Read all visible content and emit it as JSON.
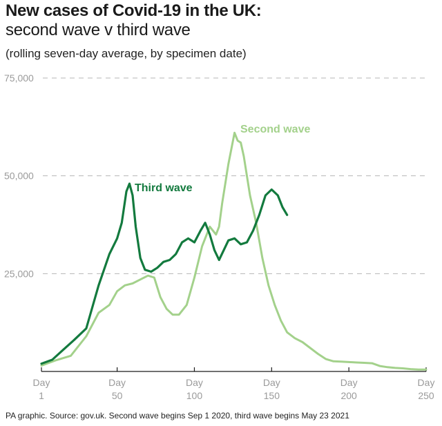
{
  "header": {
    "title": "New cases of Covid-19 in the UK:",
    "subtitle": "second wave v third wave",
    "note": "(rolling seven-day average, by specimen date)"
  },
  "footer": {
    "source": "PA graphic. Source: gov.uk. Second wave begins Sep 1 2020, third wave begins May 23 2021"
  },
  "colors": {
    "second_wave": "#a3d18b",
    "third_wave": "#137a3e",
    "grid": "#b5b5b5",
    "axis": "#1a1a1a"
  },
  "chart_data": {
    "type": "line",
    "title": "New cases of Covid-19 in the UK:",
    "subtitle": "second wave v third wave",
    "xlim": [
      1,
      250
    ],
    "ylim": [
      0,
      75000
    ],
    "grid": true,
    "y_ticks": [
      {
        "value": 25000,
        "label": "25,000"
      },
      {
        "value": 50000,
        "label": "50,000"
      },
      {
        "value": 75000,
        "label": "75,000"
      }
    ],
    "x_ticks": [
      {
        "value": 1,
        "label_top": "Day",
        "label_bottom": "1"
      },
      {
        "value": 50,
        "label_top": "Day",
        "label_bottom": "50"
      },
      {
        "value": 100,
        "label_top": "Day",
        "label_bottom": "100"
      },
      {
        "value": 150,
        "label_top": "Day",
        "label_bottom": "150"
      },
      {
        "value": 200,
        "label_top": "Day",
        "label_bottom": "200"
      },
      {
        "value": 250,
        "label_top": "Day",
        "label_bottom": "250"
      }
    ],
    "series": [
      {
        "name": "Second wave",
        "color_key": "second_wave",
        "x": [
          1,
          10,
          20,
          30,
          38,
          45,
          50,
          55,
          60,
          65,
          70,
          74,
          78,
          82,
          86,
          90,
          95,
          100,
          105,
          110,
          114,
          116,
          118,
          122,
          126,
          128,
          130,
          132,
          134,
          136,
          140,
          144,
          148,
          152,
          156,
          160,
          165,
          170,
          175,
          180,
          185,
          190,
          195,
          200,
          205,
          210,
          215,
          220,
          225,
          230,
          235,
          240,
          245,
          250
        ],
        "y": [
          1500,
          2800,
          4000,
          9000,
          15000,
          17000,
          20500,
          22000,
          22500,
          23500,
          24500,
          24000,
          19000,
          16000,
          14500,
          14500,
          17000,
          24000,
          32000,
          37000,
          35000,
          37000,
          43000,
          53000,
          61000,
          59000,
          58500,
          55000,
          50000,
          45000,
          38000,
          29000,
          22000,
          17000,
          13000,
          10000,
          8500,
          7500,
          6000,
          4500,
          3200,
          2600,
          2500,
          2400,
          2300,
          2200,
          2100,
          1400,
          1100,
          900,
          800,
          600,
          500,
          500
        ]
      },
      {
        "name": "Third wave",
        "color_key": "third_wave",
        "x": [
          1,
          8,
          15,
          22,
          30,
          38,
          45,
          50,
          53,
          56,
          58,
          60,
          62,
          65,
          68,
          72,
          76,
          80,
          84,
          88,
          92,
          96,
          100,
          104,
          107,
          110,
          113,
          116,
          119,
          122,
          126,
          130,
          134,
          138,
          142,
          146,
          150,
          154,
          157,
          160
        ],
        "y": [
          2000,
          3000,
          5500,
          8000,
          11000,
          22000,
          30000,
          34000,
          38000,
          46000,
          48000,
          45000,
          37000,
          29000,
          26000,
          25500,
          26500,
          28000,
          28500,
          30000,
          33000,
          34000,
          33000,
          36000,
          38000,
          35000,
          31000,
          28500,
          31000,
          33500,
          34000,
          32500,
          33000,
          36000,
          40000,
          45000,
          46500,
          45000,
          42000,
          40000
        ]
      }
    ]
  }
}
